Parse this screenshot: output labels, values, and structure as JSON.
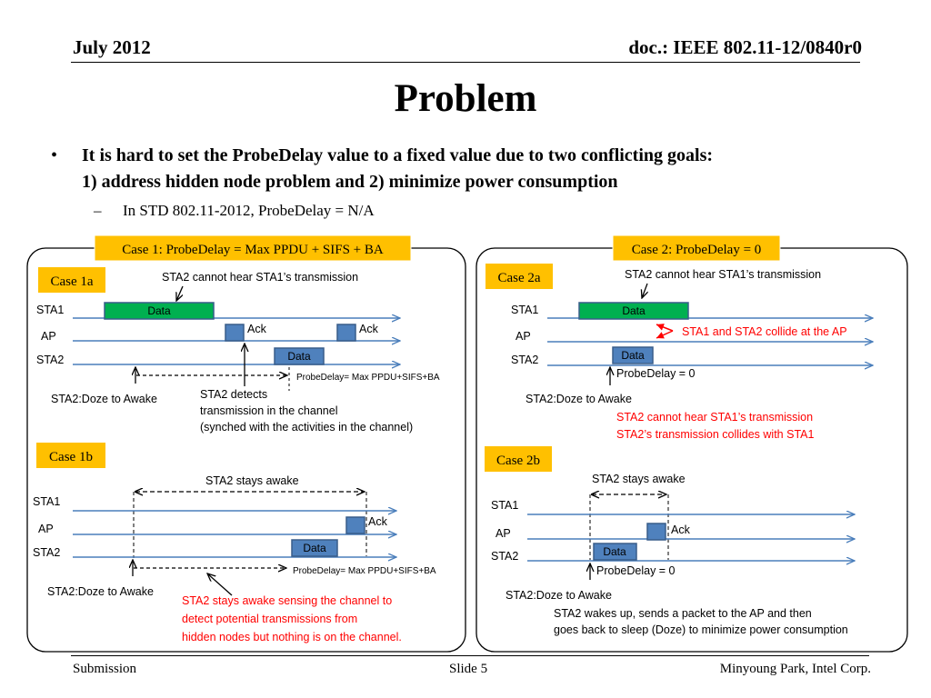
{
  "header": {
    "date": "July 2012",
    "doc": "doc.: IEEE 802.11-12/0840r0"
  },
  "title": "Problem",
  "bullets": {
    "marker": "•",
    "line1": "It is hard to set the ProbeDelay value to a fixed value due to two conflicting goals:",
    "line2": "1) address hidden node problem and 2) minimize power consumption",
    "sub_marker": "–",
    "sub": "In STD 802.11-2012, ProbeDelay = N/A"
  },
  "colors": {
    "arrow": "#4a7ebb",
    "case_box": "#ffc000",
    "data_green": "#00b050",
    "frame_blue": "#4f81bd",
    "frame_border": "#385d8a",
    "red": "#ff0000"
  },
  "case1": {
    "title": "Case 1: ProbeDelay = Max PPDU + SIFS + BA",
    "a": {
      "label": "Case 1a",
      "lines": [
        "STA1",
        "AP",
        "STA2"
      ],
      "note_top": "STA2 cannot hear STA1’s transmission",
      "data1": "Data",
      "ack1": "Ack",
      "ack2": "Ack",
      "data2": "Data",
      "probe": "ProbeDelay= Max PPDU+SIFS+BA",
      "doze": "STA2:Doze to Awake",
      "detect": [
        "STA2 detects",
        "transmission in the channel",
        "(synched with the activities in the channel)"
      ]
    },
    "b": {
      "label": "Case 1b",
      "lines": [
        "STA1",
        "AP",
        "STA2"
      ],
      "awake": "STA2 stays awake",
      "ack": "Ack",
      "data": "Data",
      "probe": "ProbeDelay= Max PPDU+SIFS+BA",
      "doze": "STA2:Doze to Awake",
      "red_note": [
        "STA2 stays awake sensing the channel to",
        "detect potential transmissions from",
        "hidden nodes but nothing is on the channel."
      ]
    }
  },
  "case2": {
    "title": "Case 2: ProbeDelay = 0",
    "a": {
      "label": "Case 2a",
      "lines": [
        "STA1",
        "AP",
        "STA2"
      ],
      "note_top": "STA2 cannot hear STA1’s transmission",
      "data1": "Data",
      "collide": "STA1 and STA2 collide at the AP",
      "data2": "Data",
      "probe": "ProbeDelay = 0",
      "doze": "STA2:Doze to Awake",
      "red_note": [
        "STA2 cannot hear STA1’s transmission",
        "STA2’s transmission collides with STA1"
      ]
    },
    "b": {
      "label": "Case 2b",
      "lines": [
        "STA1",
        "AP",
        "STA2"
      ],
      "awake": "STA2 stays awake",
      "ack": "Ack",
      "data": "Data",
      "probe": "ProbeDelay = 0",
      "doze": "STA2:Doze to Awake",
      "note": [
        "STA2 wakes up, sends a packet to the AP and then",
        "goes back to sleep (Doze) to minimize power consumption"
      ]
    }
  },
  "footer": {
    "left": "Submission",
    "center": "Slide 5",
    "right": "Minyoung Park, Intel Corp."
  }
}
